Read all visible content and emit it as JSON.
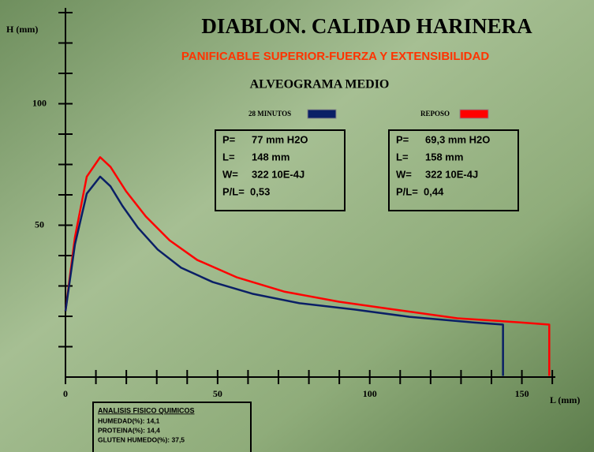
{
  "chart_data": {
    "type": "line",
    "title": "DIABLON. CALIDAD HARINERA",
    "subtitle": "PANIFICABLE SUPERIOR-FUERZA Y EXTENSIBILIDAD",
    "heading": "ALVEOGRAMA MEDIO",
    "y_label": "H (mm)",
    "x_label": "L (mm)",
    "xlim": [
      0,
      161
    ],
    "ylim": [
      -12.5,
      137.5
    ],
    "xticks": [
      0,
      50,
      100,
      150
    ],
    "xminorticks": [
      10,
      20,
      30,
      40,
      60,
      70,
      80,
      90,
      110,
      120,
      130,
      140,
      160
    ],
    "yticks": [
      50,
      100
    ],
    "yminorticks": [
      0,
      12.5,
      25,
      37.5,
      62.5,
      75,
      87.5,
      112.5,
      125,
      137.5
    ],
    "series": [
      {
        "name": "28 MINUTOS",
        "color": "#0a1f66",
        "x": [
          0,
          3.1,
          7,
          11.4,
          14.8,
          18.7,
          23.8,
          30.3,
          38,
          48.4,
          61.4,
          76.9,
          95,
          113,
          134,
          143.8,
          143.8
        ],
        "values": [
          14.6,
          42,
          63,
          70,
          66,
          58,
          49,
          40,
          32.5,
          26.6,
          21.8,
          17.9,
          15.3,
          12.3,
          10,
          9.1,
          -12
        ]
      },
      {
        "name": "REPOSO",
        "color": "#ff0000",
        "x": [
          0,
          3.1,
          7,
          11.4,
          14.8,
          19.9,
          26.4,
          34.2,
          43.3,
          56.2,
          71.8,
          89.9,
          108,
          128.8,
          149.5,
          159,
          159
        ],
        "values": [
          14.6,
          45,
          70,
          78,
          74,
          64,
          53.6,
          43.8,
          35.7,
          28.6,
          22.7,
          18.5,
          15.3,
          11.7,
          10,
          9.1,
          -12
        ]
      }
    ]
  },
  "info_boxes": [
    [
      [
        "P=",
        "77 mm H2O"
      ],
      [
        "L=",
        "148 mm"
      ],
      [
        "W=",
        "322 10E-4J"
      ],
      [
        "P/L=",
        "0,53"
      ]
    ],
    [
      [
        "P=",
        "69,3 mm H2O"
      ],
      [
        "L=",
        "158 mm"
      ],
      [
        "W=",
        "322 10E-4J"
      ],
      [
        "P/L=",
        "0,44"
      ]
    ]
  ],
  "analysis": {
    "title": "ANALISIS FISICO QUIMICOS",
    "lines": [
      "HUMEDAD(%): 14,1",
      "PROTEINA(%): 14,4",
      "GLUTEN HUMEDO(%): 37,5"
    ]
  }
}
